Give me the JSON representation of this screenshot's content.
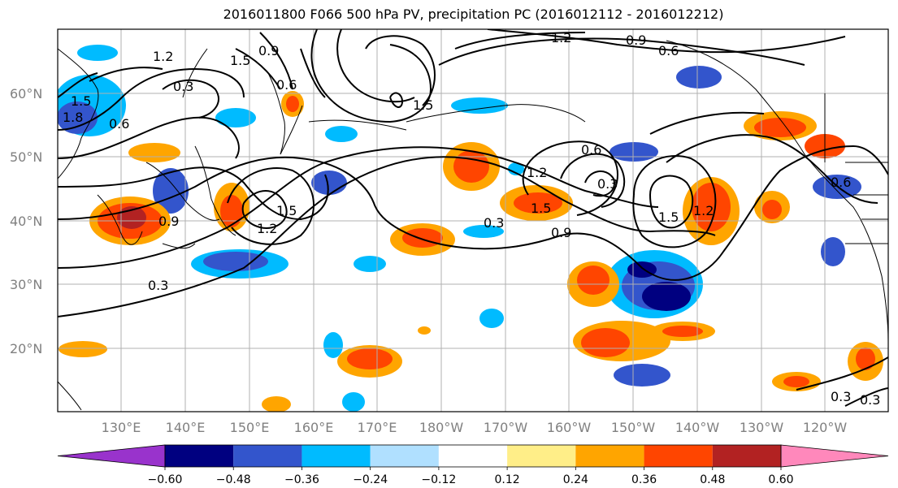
{
  "title": "2016011800 F066 500 hPa PV, precipitation PC (2016012112 - 2016012212)",
  "lat_labels": [
    "60°N",
    "50°N",
    "40°N",
    "30°N",
    "20°N"
  ],
  "lon_labels": [
    "130°E",
    "140°E",
    "150°E",
    "160°E",
    "170°E",
    "180°W",
    "170°W",
    "160°W",
    "150°W",
    "140°W",
    "130°W",
    "120°W"
  ],
  "contour_labels": [
    "1.2",
    "1.5",
    "0.9",
    "0.6",
    "0.3",
    "1.8"
  ],
  "colorbar": {
    "colors": [
      "#9933cc",
      "#000080",
      "#3355cc",
      "#00bbff",
      "#b0e0ff",
      "#ffffff",
      "#ffee88",
      "#ffa500",
      "#ff4500",
      "#b22222",
      "#ff88bb"
    ],
    "ticks": [
      "−0.60",
      "−0.48",
      "−0.36",
      "−0.24",
      "−0.12",
      "0.12",
      "0.24",
      "0.36",
      "0.48",
      "0.60"
    ]
  }
}
